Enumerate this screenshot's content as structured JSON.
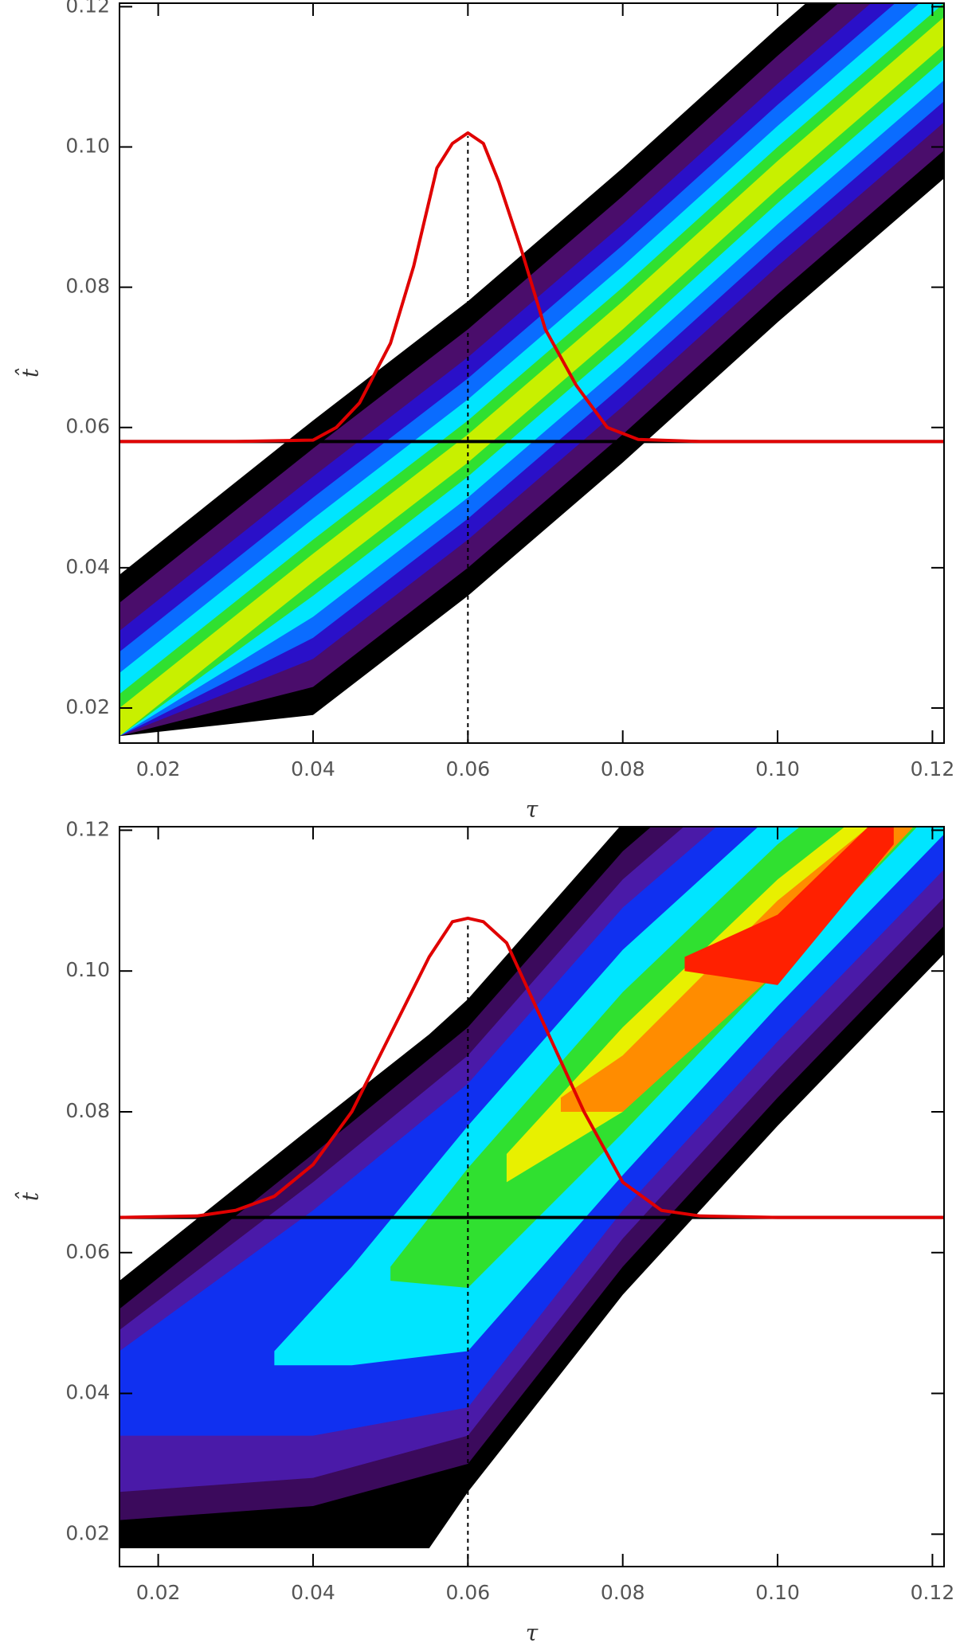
{
  "chart_data": [
    {
      "type": "contour",
      "xlabel": "τ",
      "ylabel": "t̂",
      "xlim": [
        0.015,
        0.1215
      ],
      "ylim": [
        0.015,
        0.1205
      ],
      "xticks": [
        0.02,
        0.04,
        0.06,
        0.08,
        {
          "value": 0.1,
          "label": "0.10"
        },
        0.12
      ],
      "yticks": [
        0.02,
        0.04,
        0.06,
        0.08,
        {
          "value": 0.1,
          "label": "0.10"
        },
        0.12
      ],
      "levels": [
        {
          "color": "#000000",
          "x": [
            0.015,
            0.04,
            0.06,
            0.08,
            0.1,
            0.122
          ],
          "y_high": [
            0.039,
            0.061,
            0.078,
            0.097,
            0.117,
            0.138
          ],
          "y_low": [
            0.016,
            0.019,
            0.036,
            0.055,
            0.075,
            0.096
          ]
        },
        {
          "color": "#4a0d6b",
          "x": [
            0.015,
            0.04,
            0.06,
            0.08,
            0.1,
            0.122
          ],
          "y_high": [
            0.035,
            0.057,
            0.074,
            0.093,
            0.113,
            0.134
          ],
          "y_low": [
            0.016,
            0.023,
            0.04,
            0.059,
            0.079,
            0.1
          ]
        },
        {
          "color": "#2a10c8",
          "x": [
            0.015,
            0.04,
            0.06,
            0.08,
            0.1,
            0.122
          ],
          "y_high": [
            0.031,
            0.053,
            0.07,
            0.089,
            0.109,
            0.13
          ],
          "y_low": [
            0.016,
            0.027,
            0.044,
            0.063,
            0.083,
            0.104
          ]
        },
        {
          "color": "#0a6cff",
          "x": [
            0.015,
            0.04,
            0.06,
            0.08,
            0.1,
            0.122
          ],
          "y_high": [
            0.028,
            0.05,
            0.067,
            0.086,
            0.106,
            0.127
          ],
          "y_low": [
            0.016,
            0.03,
            0.047,
            0.066,
            0.086,
            0.107
          ]
        },
        {
          "color": "#00e5ff",
          "x": [
            0.015,
            0.04,
            0.06,
            0.08,
            0.1,
            0.122
          ],
          "y_high": [
            0.025,
            0.047,
            0.064,
            0.083,
            0.103,
            0.124
          ],
          "y_low": [
            0.016,
            0.033,
            0.05,
            0.069,
            0.089,
            0.11
          ]
        },
        {
          "color": "#30e030",
          "x": [
            0.015,
            0.04,
            0.06,
            0.08,
            0.1,
            0.122
          ],
          "y_high": [
            0.022,
            0.044,
            0.061,
            0.08,
            0.1,
            0.121
          ],
          "y_low": [
            0.016,
            0.036,
            0.053,
            0.072,
            0.092,
            0.113
          ]
        },
        {
          "color": "#c8f000",
          "x": [
            0.015,
            0.04,
            0.06,
            0.08,
            0.1,
            0.122
          ],
          "y_high": [
            0.02,
            0.042,
            0.059,
            0.078,
            0.098,
            0.119
          ],
          "y_low": [
            0.016,
            0.038,
            0.055,
            0.074,
            0.094,
            0.115
          ]
        }
      ],
      "curve": {
        "color": "#e00000",
        "x": [
          0.015,
          0.03,
          0.04,
          0.043,
          0.046,
          0.05,
          0.053,
          0.056,
          0.058,
          0.06,
          0.062,
          0.064,
          0.067,
          0.07,
          0.074,
          0.078,
          0.082,
          0.09,
          0.122
        ],
        "y": [
          0.058,
          0.058,
          0.0582,
          0.06,
          0.0635,
          0.072,
          0.083,
          0.097,
          0.1005,
          0.102,
          0.1005,
          0.095,
          0.085,
          0.074,
          0.066,
          0.06,
          0.0583,
          0.058,
          0.058
        ]
      },
      "hline": 0.058,
      "vline": 0.06
    },
    {
      "type": "contour",
      "xlabel": "τ",
      "ylabel": "t̂",
      "xlim": [
        0.015,
        0.1215
      ],
      "ylim": [
        0.0154,
        0.1205
      ],
      "xticks": [
        0.02,
        0.04,
        0.06,
        0.08,
        {
          "value": 0.1,
          "label": "0.10"
        },
        0.12
      ],
      "yticks": [
        0.02,
        0.04,
        0.06,
        0.08,
        {
          "value": 0.1,
          "label": "0.10"
        },
        0.12
      ],
      "levels": [
        {
          "color": "#000000",
          "x": [
            0.015,
            0.04,
            0.055,
            0.06,
            0.08,
            0.1,
            0.122
          ],
          "y_high": [
            0.056,
            0.078,
            0.091,
            0.096,
            0.121,
            0.14,
            0.16
          ],
          "y_low": [
            0.018,
            0.018,
            0.018,
            0.026,
            0.054,
            0.078,
            0.103
          ]
        },
        {
          "color": "#3b0a5c",
          "x": [
            0.015,
            0.04,
            0.06,
            0.08,
            0.1,
            0.122
          ],
          "y_high": [
            0.052,
            0.074,
            0.092,
            0.117,
            0.136,
            0.156
          ],
          "y_low": [
            0.022,
            0.024,
            0.03,
            0.058,
            0.082,
            0.107
          ]
        },
        {
          "color": "#4a1aa8",
          "x": [
            0.015,
            0.04,
            0.06,
            0.08,
            0.1,
            0.122
          ],
          "y_high": [
            0.049,
            0.07,
            0.088,
            0.113,
            0.132,
            0.152
          ],
          "y_low": [
            0.026,
            0.028,
            0.034,
            0.062,
            0.086,
            0.111
          ]
        },
        {
          "color": "#1030f0",
          "x": [
            0.015,
            0.04,
            0.06,
            0.08,
            0.1,
            0.122
          ],
          "y_high": [
            0.046,
            0.066,
            0.084,
            0.109,
            0.128,
            0.148
          ],
          "y_low": [
            0.034,
            0.034,
            0.038,
            0.066,
            0.09,
            0.115
          ]
        },
        {
          "color": "#00e5ff",
          "x": [
            0.035,
            0.045,
            0.06,
            0.08,
            0.1,
            0.122
          ],
          "y_high": [
            0.046,
            0.058,
            0.078,
            0.103,
            0.123,
            0.143
          ],
          "y_low": [
            0.044,
            0.044,
            0.046,
            0.071,
            0.095,
            0.12
          ]
        },
        {
          "color": "#30e030",
          "x": [
            0.05,
            0.06,
            0.08,
            0.1,
            0.122
          ],
          "y_high": [
            0.058,
            0.072,
            0.097,
            0.118,
            0.137
          ],
          "y_low": [
            0.056,
            0.055,
            0.077,
            0.1,
            0.125
          ]
        },
        {
          "color": "#e8f000",
          "x": [
            0.065,
            0.08,
            0.1,
            0.122
          ],
          "y_high": [
            0.074,
            0.092,
            0.113,
            0.132
          ],
          "y_low": [
            0.07,
            0.08,
            0.104,
            0.129
          ]
        },
        {
          "color": "#ff8c00",
          "x": [
            0.072,
            0.08,
            0.1,
            0.118
          ],
          "y_high": [
            0.082,
            0.088,
            0.11,
            0.126
          ],
          "y_low": [
            0.08,
            0.08,
            0.1,
            0.121
          ]
        },
        {
          "color": "#ff2000",
          "x": [
            0.088,
            0.1,
            0.115
          ],
          "y_high": [
            0.102,
            0.108,
            0.124
          ],
          "y_low": [
            0.1,
            0.098,
            0.118
          ]
        }
      ],
      "curve": {
        "color": "#e00000",
        "x": [
          0.015,
          0.025,
          0.03,
          0.035,
          0.04,
          0.045,
          0.05,
          0.055,
          0.058,
          0.06,
          0.062,
          0.065,
          0.07,
          0.075,
          0.08,
          0.085,
          0.09,
          0.1,
          0.122
        ],
        "y": [
          0.065,
          0.0652,
          0.066,
          0.068,
          0.0725,
          0.08,
          0.091,
          0.102,
          0.107,
          0.1075,
          0.107,
          0.104,
          0.092,
          0.08,
          0.07,
          0.066,
          0.0652,
          0.065,
          0.065
        ]
      },
      "hline": 0.065,
      "vline": 0.06
    }
  ]
}
